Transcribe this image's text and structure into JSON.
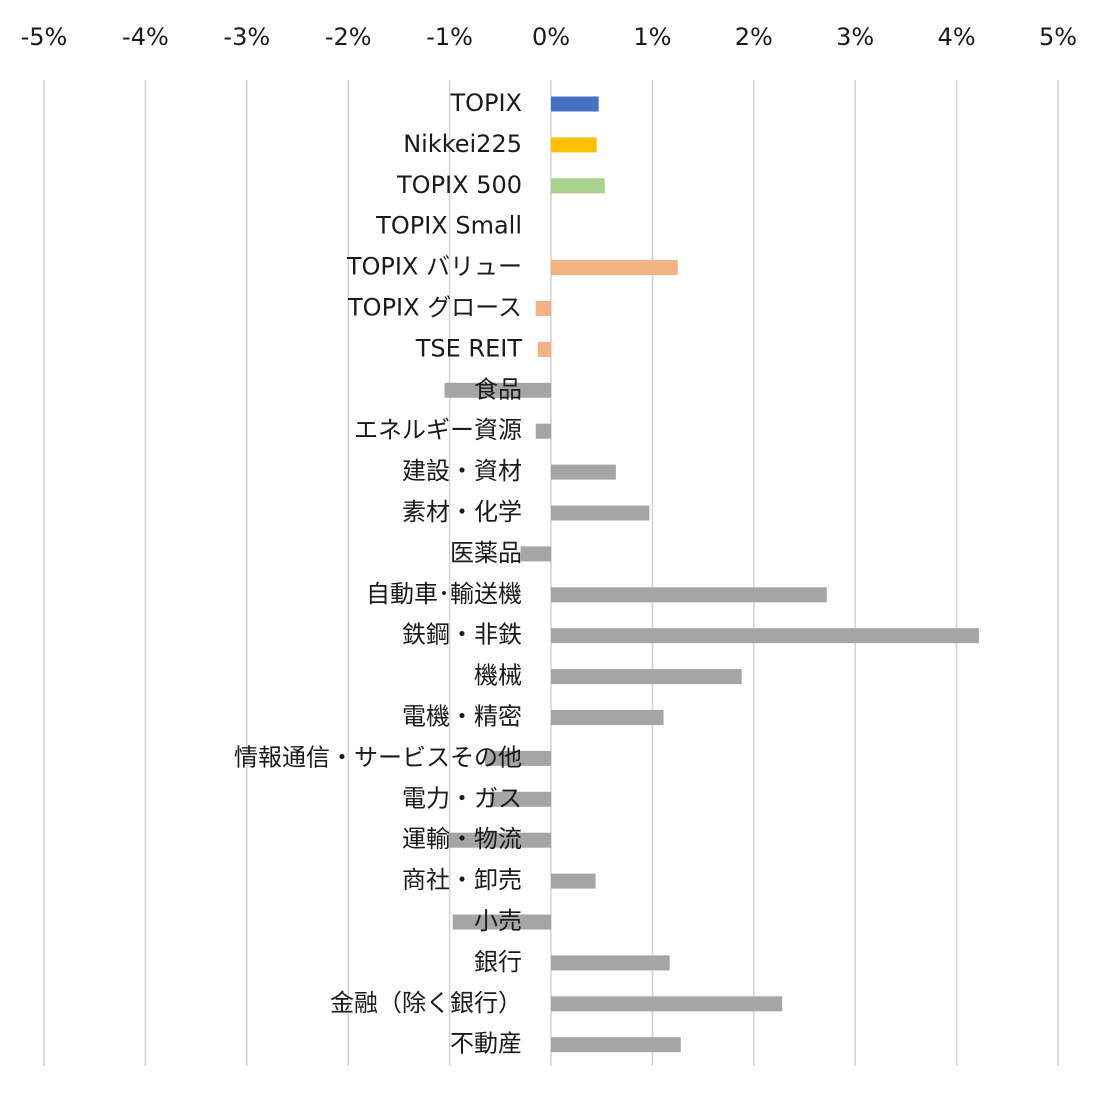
{
  "chart_data": {
    "type": "bar",
    "orientation": "horizontal",
    "title": "",
    "xlabel": "",
    "ylabel": "",
    "xlim": [
      -5,
      5
    ],
    "x_ticks": [
      -5,
      -4,
      -3,
      -2,
      -1,
      0,
      1,
      2,
      3,
      4,
      5
    ],
    "x_tick_labels": [
      "-5%",
      "-4%",
      "-3%",
      "-2%",
      "-1%",
      "0%",
      "1%",
      "2%",
      "3%",
      "4%",
      "5%"
    ],
    "x_axis_position": "top",
    "grid": "vertical",
    "legend": "none",
    "value_unit": "%",
    "categories": [
      "TOPIX",
      "Nikkei225",
      "TOPIX 500",
      "TOPIX Small",
      "TOPIX バリュー",
      "TOPIX グロース",
      "TSE REIT",
      "食品",
      "エネルギー資源",
      "建設・資材",
      "素材・化学",
      "医薬品",
      "自動車･輸送機",
      "鉄鋼・非鉄",
      "機械",
      "電機・精密",
      "情報通信・サービスその他",
      "電力・ガス",
      "運輸・物流",
      "商社・卸売",
      "小売",
      "銀行",
      "金融（除く銀行）",
      "不動産"
    ],
    "values": [
      0.47,
      0.45,
      0.53,
      -0.01,
      1.25,
      -0.15,
      -0.13,
      -1.05,
      -0.15,
      0.64,
      0.97,
      -0.3,
      2.72,
      4.22,
      1.88,
      1.11,
      -0.65,
      -0.6,
      -1.02,
      0.44,
      -0.97,
      1.17,
      2.28,
      1.28
    ],
    "colors": [
      "#4472c4",
      "#ffc000",
      "#a9d18e",
      "#d9d9d9",
      "#f4b183",
      "#f4b183",
      "#f4b183",
      "#a5a5a5",
      "#a5a5a5",
      "#a5a5a5",
      "#a5a5a5",
      "#a5a5a5",
      "#a5a5a5",
      "#a5a5a5",
      "#a5a5a5",
      "#a5a5a5",
      "#a5a5a5",
      "#a5a5a5",
      "#a5a5a5",
      "#a5a5a5",
      "#a5a5a5",
      "#a5a5a5",
      "#a5a5a5",
      "#a5a5a5"
    ],
    "grid_color": "#d4d4d4"
  }
}
